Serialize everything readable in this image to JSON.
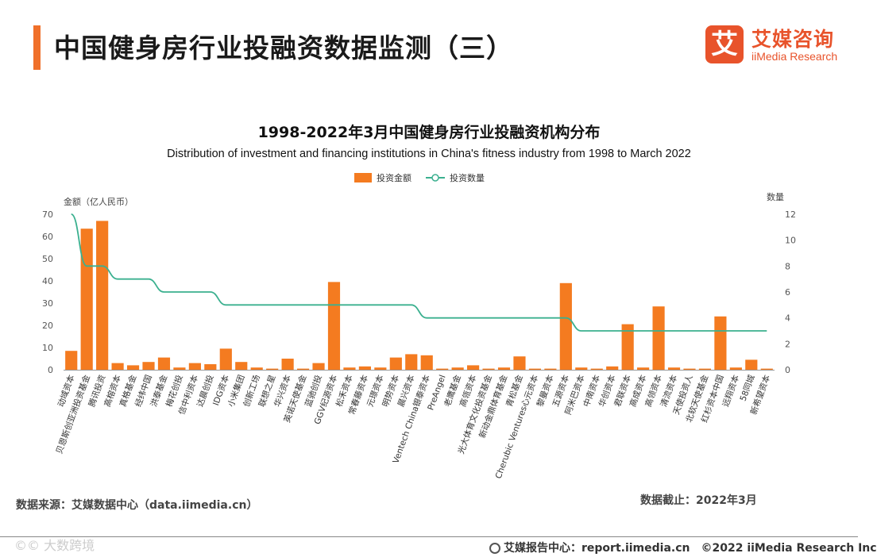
{
  "header": {
    "title": "中国健身房行业投融资数据监测（三）",
    "accent_color": "#f0702a"
  },
  "logo": {
    "mark": "艾",
    "name_cn": "艾媒咨询",
    "name_en": "iiMedia Research",
    "color": "#e8532b"
  },
  "chart_data": {
    "type": "bar",
    "title": "1998-2022年3月中国健身房行业投融资机构分布",
    "subtitle": "Distribution of investment and financing institutions in China's fitness industry from 1998 to March 2022",
    "legend": [
      {
        "name": "投资金额",
        "type": "bar",
        "color": "#f47b20"
      },
      {
        "name": "投资数量",
        "type": "line",
        "color": "#3bb08f"
      }
    ],
    "ylabel_left": "金额（亿人民币）",
    "ylabel_right": "数量",
    "ylim_left": [
      0,
      70
    ],
    "yticks_left": [
      0,
      10,
      20,
      30,
      40,
      50,
      60,
      70
    ],
    "ylim_right": [
      0,
      12
    ],
    "yticks_right": [
      0,
      2,
      4,
      6,
      8,
      10,
      12
    ],
    "categories": [
      "动域资本",
      "贝恩斯创亚洲投资基金",
      "腾讯投资",
      "高榕资本",
      "真格基金",
      "经纬中国",
      "洪泰基金",
      "梅花创投",
      "信中利资本",
      "达晨创投",
      "IDG资本",
      "小米集团",
      "创新工场",
      "联想之星",
      "华兴资本",
      "英诺天使基金",
      "蓝驰创投",
      "GGV纪源资本",
      "松禾资本",
      "常春藤资本",
      "元璟资本",
      "明势资本",
      "晨兴资本",
      "Ventech China银泰资本",
      "PreAngel",
      "老鹰基金",
      "高瓴资本",
      "光大体育文化投资基金",
      "新动金鼎体育基金",
      "青松基金",
      "Cherubic Ventures心元资本",
      "黎曼资本",
      "五源资本",
      "阿米巴资本",
      "中南资本",
      "华创资本",
      "君联资本",
      "高成资本",
      "高领资本",
      "清流资本",
      "天使投资人",
      "北软天使基金",
      "红杉资本中国",
      "远翔资本",
      "58同城",
      "新希望资本"
    ],
    "series": [
      {
        "name": "投资金额",
        "values": [
          8.5,
          63.5,
          67,
          3,
          2,
          3.5,
          5.5,
          1,
          3,
          2.5,
          9.5,
          3.5,
          1,
          0.5,
          5,
          0.5,
          3,
          39.5,
          1,
          1.5,
          1,
          5.5,
          7,
          6.5,
          0.5,
          1,
          2,
          0.5,
          1,
          6,
          0.5,
          0.5,
          39,
          1,
          0.5,
          1.5,
          20.5,
          1,
          28.5,
          1,
          0.5,
          0.5,
          24,
          1,
          4.5,
          0.5
        ]
      },
      {
        "name": "投资数量",
        "values": [
          12,
          8,
          8,
          7,
          7,
          7,
          6,
          6,
          6,
          6,
          5,
          5,
          5,
          5,
          5,
          5,
          5,
          5,
          5,
          5,
          5,
          5,
          5,
          4,
          4,
          4,
          4,
          4,
          4,
          4,
          4,
          4,
          4,
          3,
          3,
          3,
          3,
          3,
          3,
          3,
          3,
          3,
          3,
          3,
          3,
          3
        ]
      }
    ]
  },
  "footer": {
    "source": "数据来源：艾媒数据中心（data.iimedia.cn）",
    "cutoff": "数据截止：2022年3月",
    "watermark": "©© 大数跨境",
    "report_center": "艾媒报告中心：report.iimedia.cn　©2022  iiMedia Research  Inc"
  }
}
